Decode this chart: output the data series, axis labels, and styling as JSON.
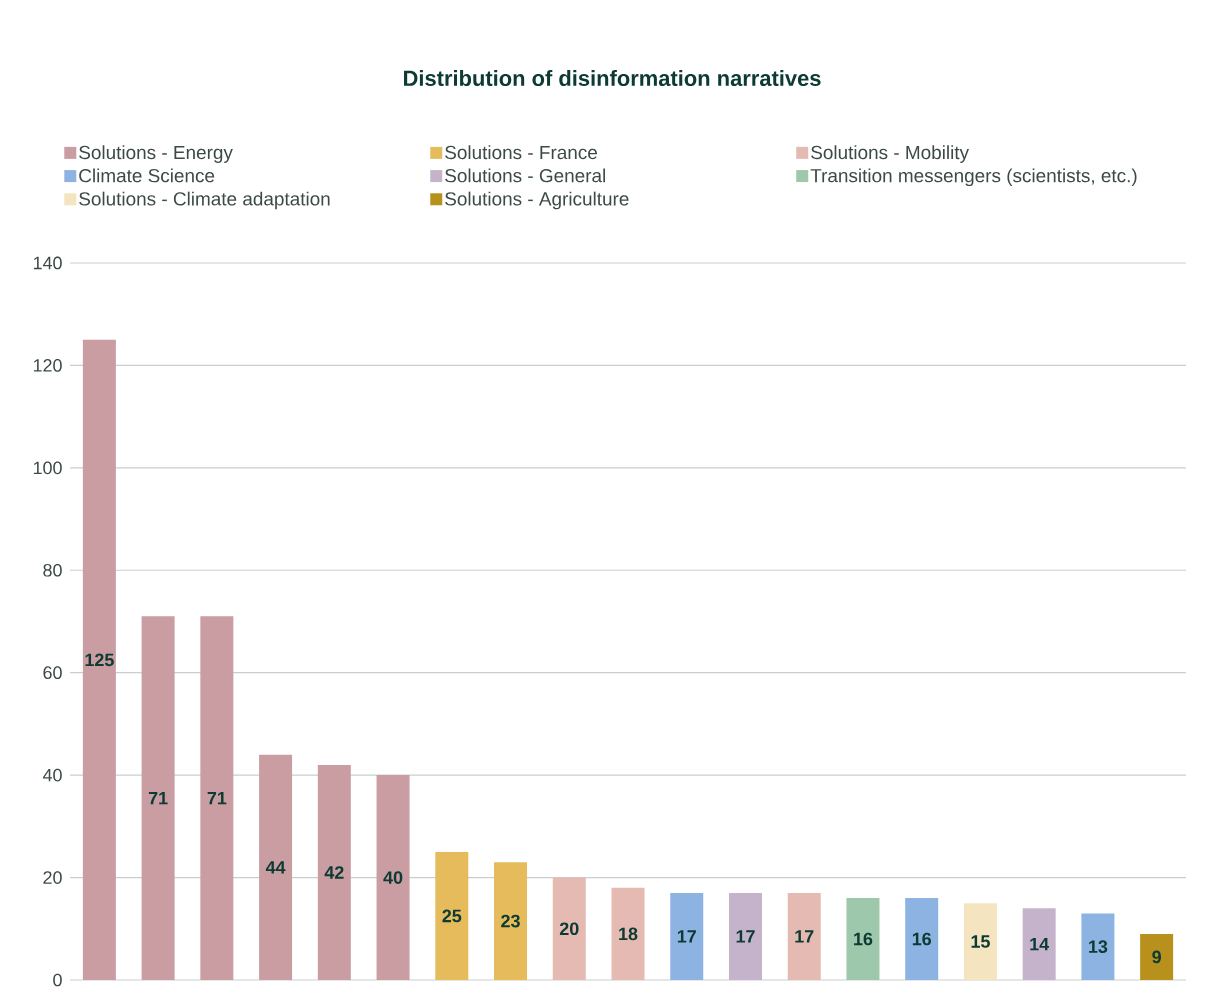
{
  "chart_data": {
    "type": "bar",
    "title": "Distribution of disinformation narratives",
    "categories": [
      null,
      null,
      null,
      null,
      null,
      null,
      null,
      null,
      null,
      null,
      null,
      null,
      null,
      null,
      null,
      null,
      null,
      null,
      null
    ],
    "series": [
      {
        "name": "Solutions - Energy",
        "color": "#c99da2",
        "values": [
          125,
          71,
          71,
          44,
          42,
          40,
          null,
          null,
          null,
          null,
          null,
          null,
          null,
          null,
          null,
          null,
          null,
          null,
          null
        ]
      },
      {
        "name": "Solutions - France",
        "color": "#e5bb5c",
        "values": [
          null,
          null,
          null,
          null,
          null,
          null,
          25,
          23,
          null,
          null,
          null,
          null,
          null,
          null,
          null,
          null,
          null,
          null,
          null
        ]
      },
      {
        "name": "Solutions - Mobility",
        "color": "#e4bab3",
        "values": [
          null,
          null,
          null,
          null,
          null,
          null,
          null,
          null,
          20,
          18,
          null,
          null,
          17,
          null,
          null,
          null,
          null,
          null,
          null
        ]
      },
      {
        "name": "Climate Science",
        "color": "#8db3e2",
        "values": [
          null,
          null,
          null,
          null,
          null,
          null,
          null,
          null,
          null,
          null,
          17,
          null,
          null,
          null,
          16,
          null,
          null,
          13,
          null
        ]
      },
      {
        "name": "Solutions - General",
        "color": "#c5b3cc",
        "values": [
          null,
          null,
          null,
          null,
          null,
          null,
          null,
          null,
          null,
          null,
          null,
          17,
          null,
          null,
          null,
          null,
          14,
          null,
          null
        ]
      },
      {
        "name": "Transition messengers (scientists, etc.)",
        "color": "#9ec8ab",
        "values": [
          null,
          null,
          null,
          null,
          null,
          null,
          null,
          null,
          null,
          null,
          null,
          null,
          null,
          16,
          null,
          null,
          null,
          null,
          null
        ]
      },
      {
        "name": "Solutions - Climate adaptation",
        "color": "#f5e4c0",
        "values": [
          null,
          null,
          null,
          null,
          null,
          null,
          null,
          null,
          null,
          null,
          null,
          null,
          null,
          null,
          null,
          15,
          null,
          null,
          null
        ]
      },
      {
        "name": "Solutions - Agriculture",
        "color": "#b8901c",
        "values": [
          null,
          null,
          null,
          null,
          null,
          null,
          null,
          null,
          null,
          null,
          null,
          null,
          null,
          null,
          null,
          null,
          null,
          null,
          9
        ]
      }
    ],
    "ylim": [
      0,
      140
    ],
    "yticks": [
      0,
      20,
      40,
      60,
      80,
      100,
      120,
      140
    ],
    "grid": "y",
    "legend": "top",
    "data_labels": true
  }
}
